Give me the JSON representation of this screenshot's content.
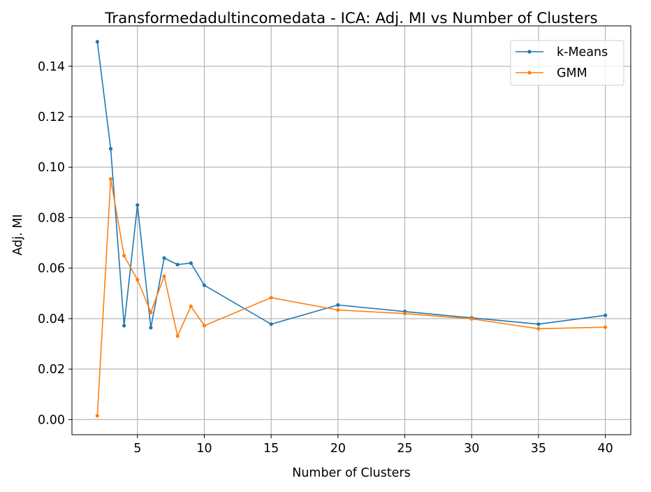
{
  "chart_data": {
    "type": "line",
    "title": "Transformedadultincomedata - ICA: Adj. MI vs Number of Clusters",
    "xlabel": "Number of Clusters",
    "ylabel": "Adj. MI",
    "xlim": [
      0.1,
      41.9
    ],
    "ylim": [
      -0.006,
      0.156
    ],
    "xticks": [
      5,
      10,
      15,
      20,
      25,
      30,
      35,
      40
    ],
    "xtick_labels": [
      "5",
      "10",
      "15",
      "20",
      "25",
      "30",
      "35",
      "40"
    ],
    "yticks": [
      0.0,
      0.02,
      0.04,
      0.06,
      0.08,
      0.1,
      0.12,
      0.14
    ],
    "ytick_labels": [
      "0.00",
      "0.02",
      "0.04",
      "0.06",
      "0.08",
      "0.10",
      "0.12",
      "0.14"
    ],
    "grid": true,
    "legend_position": "top-right",
    "x": [
      2,
      3,
      4,
      5,
      6,
      7,
      8,
      9,
      10,
      15,
      20,
      25,
      30,
      35,
      40
    ],
    "series": [
      {
        "name": "k-Means",
        "color": "#1f77b4",
        "values": [
          0.1497,
          0.1073,
          0.0372,
          0.085,
          0.0364,
          0.064,
          0.0614,
          0.062,
          0.0532,
          0.0378,
          0.0454,
          0.0428,
          0.0403,
          0.0378,
          0.0413
        ]
      },
      {
        "name": "GMM",
        "color": "#ff7f0e",
        "values": [
          0.0015,
          0.0953,
          0.0649,
          0.0554,
          0.0425,
          0.0568,
          0.0331,
          0.0449,
          0.0372,
          0.0483,
          0.0434,
          0.042,
          0.0399,
          0.036,
          0.0366
        ]
      }
    ]
  }
}
